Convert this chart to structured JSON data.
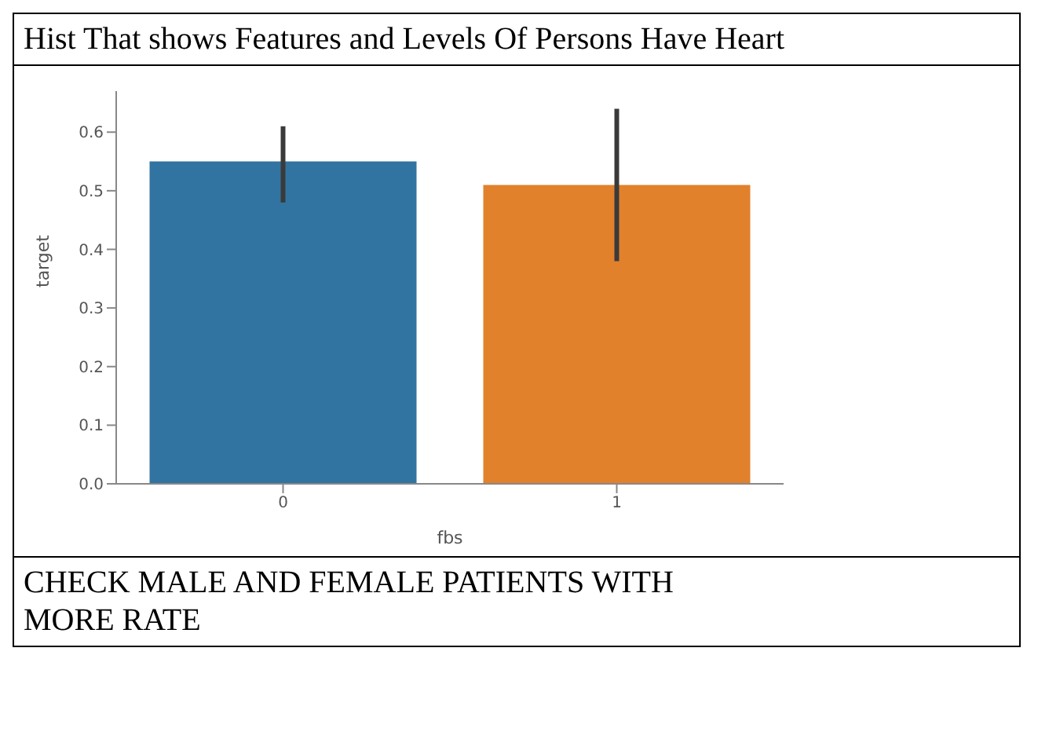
{
  "chart_data": {
    "type": "bar",
    "title": "Hist That shows Features and Levels Of Persons Have Heart",
    "xlabel": "fbs",
    "ylabel": "target",
    "categories": [
      "0",
      "1"
    ],
    "values": [
      0.55,
      0.51
    ],
    "colors": [
      "#3274a1",
      "#e1812c"
    ],
    "errors": [
      [
        0.48,
        0.61
      ],
      [
        0.38,
        0.64
      ]
    ],
    "ylim": [
      0,
      0.67
    ],
    "yticks": [
      {
        "value": 0,
        "label": "0.0"
      },
      0.1,
      0.2,
      0.3,
      0.4,
      0.5,
      0.6
    ],
    "grid": false,
    "legend": false,
    "annotations": [
      "CHECK MALE AND FEMALE PATIENTS WITH MORE RATE"
    ]
  }
}
